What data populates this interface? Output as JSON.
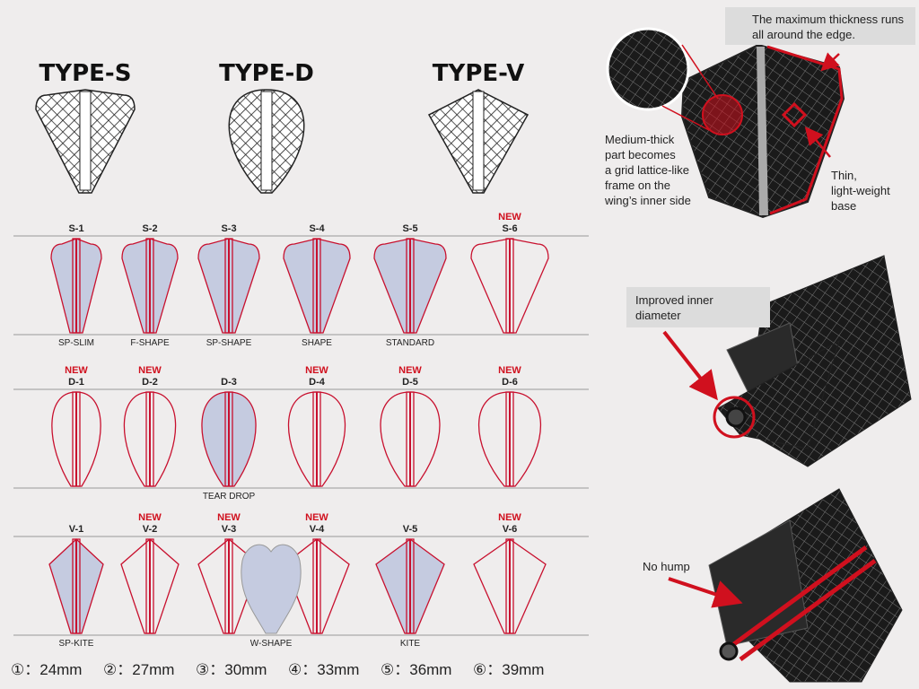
{
  "types": [
    {
      "label": "TYPE-S"
    },
    {
      "label": "TYPE-D"
    },
    {
      "label": "TYPE-V"
    }
  ],
  "rows": [
    {
      "items": [
        {
          "code": "S-1",
          "name": "SP-SLIM"
        },
        {
          "code": "S-2",
          "name": "F-SHAPE"
        },
        {
          "code": "S-3",
          "name": "SP-SHAPE"
        },
        {
          "code": "S-4",
          "name": "SHAPE"
        },
        {
          "code": "S-5",
          "name": "STANDARD"
        },
        {
          "code": "S-6",
          "badge": "NEW"
        }
      ]
    },
    {
      "items": [
        {
          "code": "D-1",
          "badge": "NEW"
        },
        {
          "code": "D-2",
          "badge": "NEW"
        },
        {
          "code": "D-3",
          "name": "TEAR DROP"
        },
        {
          "code": "D-4",
          "badge": "NEW"
        },
        {
          "code": "D-5",
          "badge": "NEW"
        },
        {
          "code": "D-6",
          "badge": "NEW"
        }
      ]
    },
    {
      "items": [
        {
          "code": "V-1",
          "name": "SP-KITE"
        },
        {
          "code": "V-2",
          "badge": "NEW"
        },
        {
          "code": "V-3",
          "badge": "NEW"
        },
        {
          "code": "V-4",
          "badge": "NEW"
        },
        {
          "code": "V-5",
          "name": "KITE"
        },
        {
          "code": "V-6",
          "badge": "NEW"
        }
      ],
      "extra": {
        "name": "W-SHAPE"
      }
    }
  ],
  "sizes": [
    "①：24mm",
    "②：27mm",
    "③：30mm",
    "④：33mm",
    "⑤：36mm",
    "⑥：39mm"
  ],
  "notes": {
    "edge": {
      "lines": [
        "The maximum thickness runs",
        "all around the edge."
      ]
    },
    "lattice": {
      "lines": [
        "Medium-thick",
        "part becomes",
        "a grid lattice-like",
        "frame on the",
        "wing’s inner side"
      ]
    },
    "base": {
      "lines": [
        "Thin,",
        "light-weight",
        "base"
      ]
    },
    "diameter": {
      "lines": [
        "Improved inner",
        "diameter"
      ]
    },
    "hump": {
      "lines": [
        "No hump"
      ]
    }
  }
}
